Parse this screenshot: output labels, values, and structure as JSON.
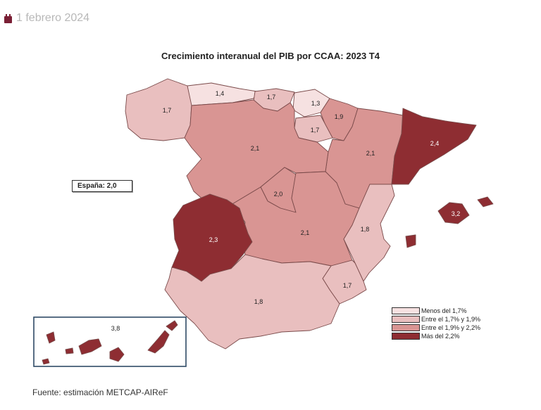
{
  "header": {
    "date": "1 febrero 2024",
    "date_icon": "calendar-icon"
  },
  "map": {
    "title": "Crecimiento interanual del PIB por CCAA: 2023 T4",
    "national_label": "España: 2,0",
    "source": "Fuente: estimación METCAP-AIReF",
    "regions": [
      {
        "id": "galicia",
        "value": "1,7",
        "category": 1
      },
      {
        "id": "asturias",
        "value": "1,4",
        "category": 0
      },
      {
        "id": "cantabria",
        "value": "1,7",
        "category": 1
      },
      {
        "id": "pais-vasco",
        "value": "1,3",
        "category": 0
      },
      {
        "id": "navarra",
        "value": "1,9",
        "category": 2
      },
      {
        "id": "la-rioja",
        "value": "1,7",
        "category": 1
      },
      {
        "id": "aragon",
        "value": "2,1",
        "category": 2
      },
      {
        "id": "cataluna",
        "value": "2,4",
        "category": 3
      },
      {
        "id": "castilla-y-leon",
        "value": "2,1",
        "category": 2
      },
      {
        "id": "madrid",
        "value": "2,0",
        "category": 2
      },
      {
        "id": "castilla-la-mancha",
        "value": "2,1",
        "category": 2
      },
      {
        "id": "extremadura",
        "value": "2,3",
        "category": 3
      },
      {
        "id": "comunitat-valenciana",
        "value": "1,8",
        "category": 1
      },
      {
        "id": "murcia",
        "value": "1,7",
        "category": 1
      },
      {
        "id": "andalucia",
        "value": "1,8",
        "category": 1
      },
      {
        "id": "baleares",
        "value": "3,2",
        "category": 3
      },
      {
        "id": "canarias",
        "value": "3,8",
        "category": 3
      }
    ],
    "legend": [
      {
        "label": "Menos del 1,7%",
        "color": "#f6e1e1"
      },
      {
        "label": "Entre el 1,7% y 1,9%",
        "color": "#e9bfbf"
      },
      {
        "label": "Entre el 1,9% y 2,2%",
        "color": "#d99593"
      },
      {
        "label": "Más del 2,2%",
        "color": "#8e2d32"
      }
    ]
  }
}
